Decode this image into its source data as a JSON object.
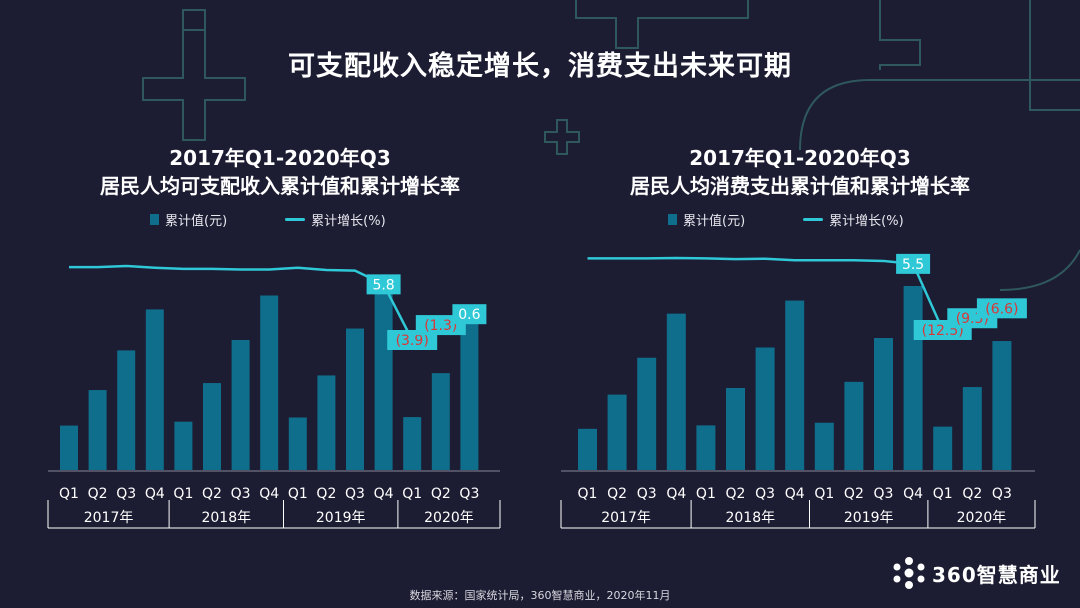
{
  "page": {
    "title": "可支配收入稳定增长，消费支出未来可期",
    "source": "数据来源：国家统计局，360智慧商业，2020年11月",
    "brand": "360智慧商业"
  },
  "colors": {
    "background": "#1c1c32",
    "bar": "#0f6e8c",
    "line": "#2fc8d6",
    "label_bg": "#2fc8d6",
    "label_positive": "#ffffff",
    "label_negative": "#d9383a",
    "decor": "#3f8a82"
  },
  "chart_data": [
    {
      "type": "bar",
      "title_line1": "2017年Q1-2020年Q3",
      "title_line2": "居民人均可支配收入累计值和累计增长率",
      "legend_bar": "累计值(元)",
      "legend_line": "累计增长(%)",
      "quarters": [
        "Q1",
        "Q2",
        "Q3",
        "Q4",
        "Q1",
        "Q2",
        "Q3",
        "Q4",
        "Q1",
        "Q2",
        "Q3",
        "Q4",
        "Q1",
        "Q2",
        "Q3"
      ],
      "years": [
        "2017年",
        "2018年",
        "2019年",
        "2020年"
      ],
      "bar_values": [
        7184,
        12932,
        19342,
        25974,
        7815,
        14063,
        21035,
        28228,
        8493,
        15294,
        22882,
        30733,
        8561,
        15666,
        23781
      ],
      "growth_values": [
        8.8,
        8.8,
        9.0,
        8.7,
        8.5,
        8.5,
        8.4,
        8.4,
        8.7,
        8.3,
        8.2,
        5.8,
        -3.9,
        -1.3,
        0.6
      ],
      "labels": [
        {
          "index": 11,
          "text": "5.8",
          "negative": false
        },
        {
          "index": 12,
          "text": "(3.9)",
          "negative": true
        },
        {
          "index": 13,
          "text": "(1.3)",
          "negative": true
        },
        {
          "index": 14,
          "text": "0.6",
          "negative": false
        }
      ]
    },
    {
      "type": "bar",
      "title_line1": "2017年Q1-2020年Q3",
      "title_line2": "居民人均消费支出累计值和累计增长率",
      "legend_bar": "累计值(元)",
      "legend_line": "累计增长(%)",
      "quarters": [
        "Q1",
        "Q2",
        "Q3",
        "Q4",
        "Q1",
        "Q2",
        "Q3",
        "Q4",
        "Q1",
        "Q2",
        "Q3",
        "Q4",
        "Q1",
        "Q2",
        "Q3"
      ],
      "years": [
        "2017年",
        "2018年",
        "2019年",
        "2020年"
      ],
      "bar_values": [
        4828,
        8834,
        13154,
        18322,
        5227,
        9609,
        14356,
        19853,
        5538,
        10330,
        15464,
        21559,
        5082,
        9718,
        15108
      ],
      "growth_values": [
        7.0,
        7.0,
        7.0,
        7.1,
        7.0,
        6.8,
        6.9,
        6.5,
        6.5,
        6.5,
        6.3,
        5.5,
        -12.5,
        -9.3,
        -6.6
      ],
      "labels": [
        {
          "index": 11,
          "text": "5.5",
          "negative": false
        },
        {
          "index": 12,
          "text": "(12.5)",
          "negative": true
        },
        {
          "index": 13,
          "text": "(9.3)",
          "negative": true
        },
        {
          "index": 14,
          "text": "(6.6)",
          "negative": true
        }
      ]
    }
  ]
}
